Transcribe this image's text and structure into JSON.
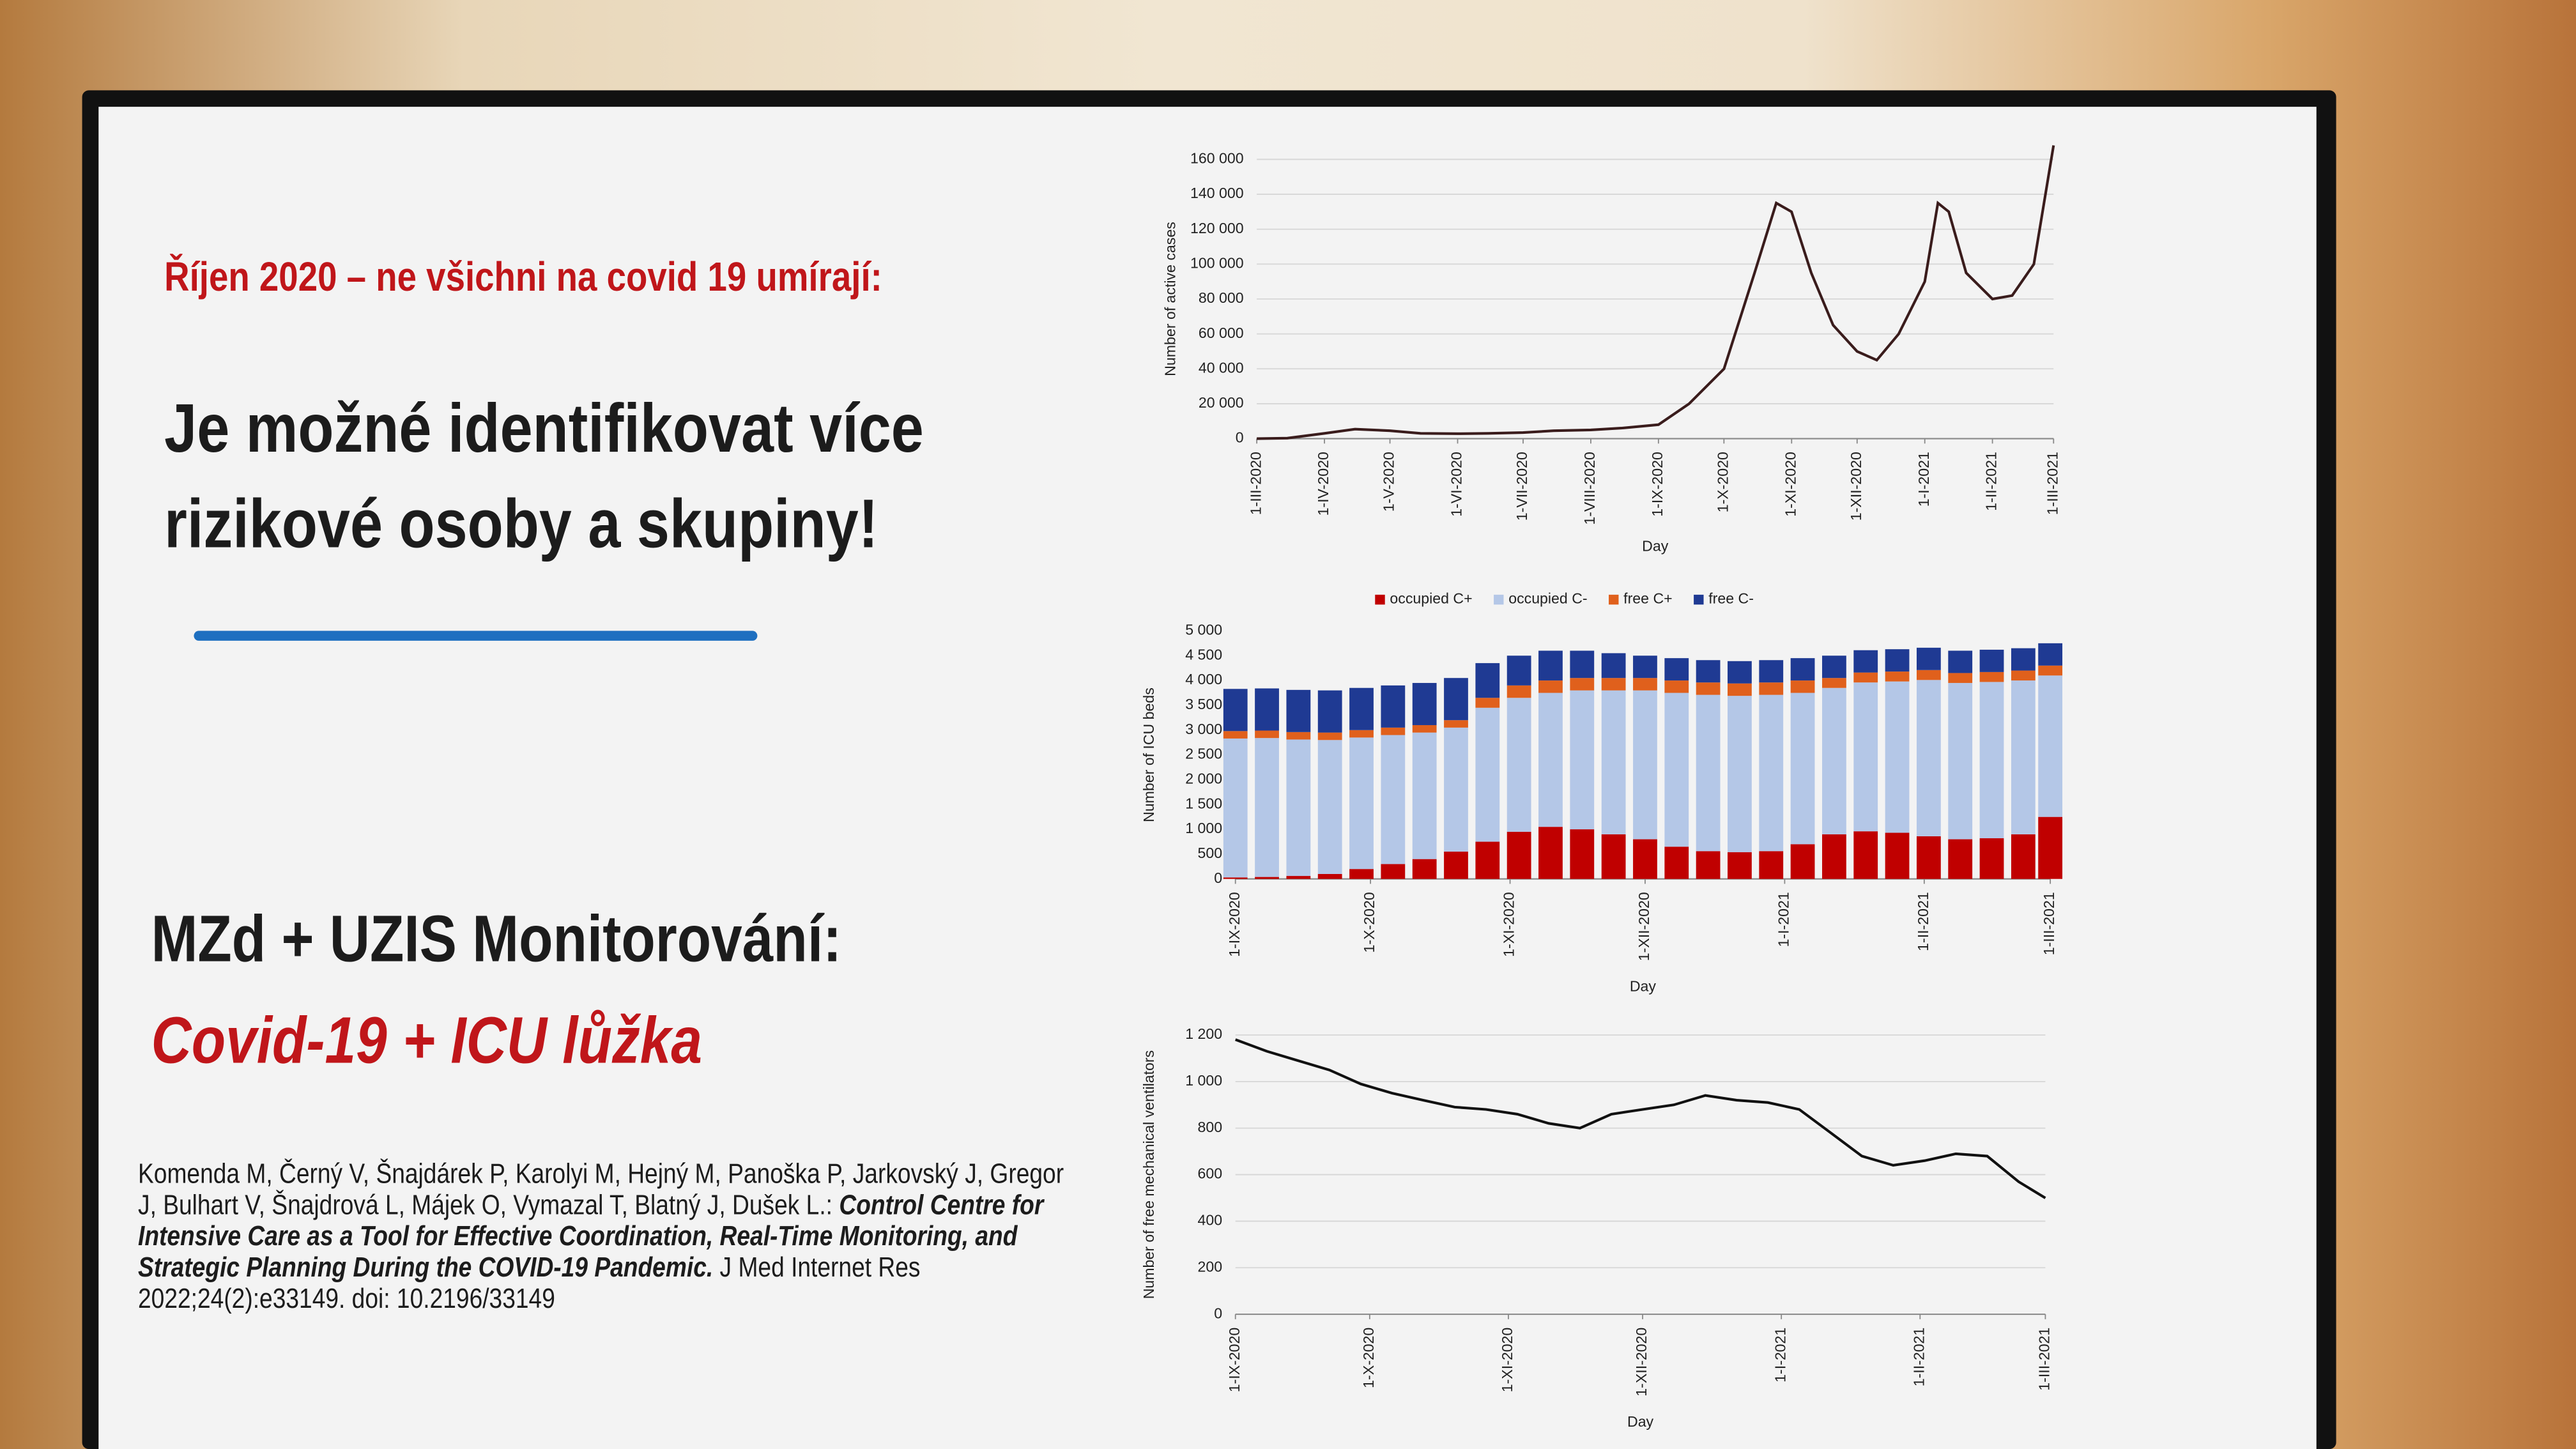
{
  "slide": {
    "heading": "Říjen 2020 – ne všichni na covid 19 umírají:",
    "message": "Je možné identifikovat více rizikové osoby a skupiny!",
    "monitoring": "MZd + UZIS Monitorování:",
    "monitoring_sub": "Covid-19 + ICU lůžka",
    "citation": {
      "authors": "Komenda M, Černý V, Šnajdárek P, Karolyi M, Hejný M, Panoška P, Jarkovský J, Gregor J, Bulhart V, Šnajdrová L, Májek O, Vymazal T, Blatný J, Dušek L.:",
      "title": "Control Centre for Intensive Care as a Tool for Effective Coordination, Real-Time Monitoring, and Strategic Planning During the COVID-19 Pandemic.",
      "journal": "J Med Internet Res 2022;24(2):e33149. doi: 10.2196/33149"
    }
  },
  "chart_data": [
    {
      "type": "line",
      "y_label": "Number of active cases",
      "x_label": "Day",
      "color": "#3a1c1c",
      "grid": true,
      "xlim": [
        "2020-03-01",
        "2021-03-01"
      ],
      "xticks": [
        {
          "value": "2020-03-01",
          "label": "1-III-2020"
        },
        {
          "value": "2020-04-01",
          "label": "1-IV-2020"
        },
        {
          "value": "2020-05-01",
          "label": "1-V-2020"
        },
        {
          "value": "2020-06-01",
          "label": "1-VI-2020"
        },
        {
          "value": "2020-07-01",
          "label": "1-VII-2020"
        },
        {
          "value": "2020-08-01",
          "label": "1-VIII-2020"
        },
        {
          "value": "2020-09-01",
          "label": "1-IX-2020"
        },
        {
          "value": "2020-10-01",
          "label": "1-X-2020"
        },
        {
          "value": "2020-11-01",
          "label": "1-XI-2020"
        },
        {
          "value": "2020-12-01",
          "label": "1-XII-2020"
        },
        {
          "value": "2021-01-01",
          "label": "1-I-2021"
        },
        {
          "value": "2021-02-01",
          "label": "1-II-2021"
        },
        {
          "value": "2021-03-01",
          "label": "1-III-2021"
        }
      ],
      "ylim": [
        0,
        160000
      ],
      "yticks": [
        0,
        {
          "value": 20000,
          "label": "20 000"
        },
        {
          "value": 40000,
          "label": "40 000"
        },
        {
          "value": 60000,
          "label": "60 000"
        },
        {
          "value": 80000,
          "label": "80 000"
        },
        {
          "value": 100000,
          "label": "100 000"
        },
        {
          "value": 120000,
          "label": "120 000"
        },
        {
          "value": 140000,
          "label": "140 000"
        },
        {
          "value": 160000,
          "label": "160 000"
        }
      ],
      "x": [
        "2020-03-01",
        "2020-03-15",
        "2020-04-01",
        "2020-04-15",
        "2020-05-01",
        "2020-05-15",
        "2020-06-01",
        "2020-06-15",
        "2020-07-01",
        "2020-07-15",
        "2020-08-01",
        "2020-08-15",
        "2020-09-01",
        "2020-09-15",
        "2020-10-01",
        "2020-10-15",
        "2020-10-25",
        "2020-11-01",
        "2020-11-10",
        "2020-11-20",
        "2020-12-01",
        "2020-12-10",
        "2020-12-20",
        "2021-01-01",
        "2021-01-07",
        "2021-01-12",
        "2021-01-20",
        "2021-02-01",
        "2021-02-10",
        "2021-02-20",
        "2021-03-01"
      ],
      "values": [
        0,
        300,
        3000,
        5500,
        4500,
        3000,
        2800,
        3000,
        3500,
        4500,
        5000,
        6000,
        8000,
        20000,
        40000,
        95000,
        135000,
        130000,
        95000,
        65000,
        50000,
        45000,
        60000,
        90000,
        135000,
        130000,
        95000,
        80000,
        82000,
        100000,
        168000
      ]
    },
    {
      "type": "bar",
      "y_label": "Number of ICU beds",
      "x_label": "Day",
      "legend": "top",
      "xlim": [
        "2020-09-01",
        "2021-03-01"
      ],
      "xticks": [
        {
          "value": "2020-09-01",
          "label": "1-IX-2020"
        },
        {
          "value": "2020-10-01",
          "label": "1-X-2020"
        },
        {
          "value": "2020-11-01",
          "label": "1-XI-2020"
        },
        {
          "value": "2020-12-01",
          "label": "1-XII-2020"
        },
        {
          "value": "2021-01-01",
          "label": "1-I-2021"
        },
        {
          "value": "2021-02-01",
          "label": "1-II-2021"
        },
        {
          "value": "2021-03-01",
          "label": "1-III-2021"
        }
      ],
      "ylim": [
        0,
        5000
      ],
      "yticks": [
        0,
        500,
        {
          "value": 1000,
          "label": "1 000"
        },
        {
          "value": 1500,
          "label": "1 500"
        },
        {
          "value": 2000,
          "label": "2 000"
        },
        {
          "value": 2500,
          "label": "2 500"
        },
        {
          "value": 3000,
          "label": "3 000"
        },
        {
          "value": 3500,
          "label": "3 500"
        },
        {
          "value": 4000,
          "label": "4 000"
        },
        {
          "value": 4500,
          "label": "4 500"
        },
        {
          "value": 5000,
          "label": "5 000"
        }
      ],
      "x": [
        "2020-09-01",
        "2020-09-08",
        "2020-09-15",
        "2020-09-22",
        "2020-09-29",
        "2020-10-06",
        "2020-10-13",
        "2020-10-20",
        "2020-10-27",
        "2020-11-03",
        "2020-11-10",
        "2020-11-17",
        "2020-11-24",
        "2020-12-01",
        "2020-12-08",
        "2020-12-15",
        "2020-12-22",
        "2020-12-29",
        "2021-01-05",
        "2021-01-12",
        "2021-01-19",
        "2021-01-26",
        "2021-02-02",
        "2021-02-09",
        "2021-02-16",
        "2021-02-23",
        "2021-03-01"
      ],
      "series": [
        {
          "name": "occupied C+",
          "color": "#c00000",
          "values": [
            30,
            40,
            60,
            100,
            200,
            300,
            400,
            550,
            750,
            950,
            1050,
            1000,
            900,
            800,
            650,
            560,
            540,
            560,
            700,
            900,
            960,
            930,
            860,
            800,
            820,
            900,
            1250
          ]
        },
        {
          "name": "occupied C-",
          "color": "#b4c7e7",
          "values": [
            2800,
            2800,
            2750,
            2700,
            2650,
            2600,
            2550,
            2500,
            2700,
            2700,
            2700,
            2800,
            2900,
            3000,
            3100,
            3150,
            3150,
            3150,
            3050,
            2950,
            3000,
            3050,
            3150,
            3150,
            3150,
            3100,
            2850
          ]
        },
        {
          "name": "free C+",
          "color": "#e0601c",
          "values": [
            150,
            150,
            150,
            150,
            150,
            150,
            150,
            150,
            200,
            250,
            250,
            250,
            250,
            250,
            250,
            250,
            250,
            250,
            250,
            200,
            200,
            200,
            200,
            200,
            200,
            200,
            200
          ]
        },
        {
          "name": "free C-",
          "color": "#1f3a93",
          "values": [
            850,
            850,
            850,
            850,
            850,
            850,
            850,
            850,
            700,
            600,
            600,
            550,
            500,
            450,
            450,
            450,
            450,
            450,
            450,
            450,
            450,
            450,
            450,
            450,
            450,
            450,
            450
          ]
        }
      ]
    },
    {
      "type": "line",
      "y_label": "Number of free mechanical ventilators",
      "x_label": "Day",
      "color": "#111111",
      "grid": true,
      "xlim": [
        "2020-09-01",
        "2021-03-01"
      ],
      "xticks": [
        {
          "value": "2020-09-01",
          "label": "1-IX-2020"
        },
        {
          "value": "2020-10-01",
          "label": "1-X-2020"
        },
        {
          "value": "2020-11-01",
          "label": "1-XI-2020"
        },
        {
          "value": "2020-12-01",
          "label": "1-XII-2020"
        },
        {
          "value": "2021-01-01",
          "label": "1-I-2021"
        },
        {
          "value": "2021-02-01",
          "label": "1-II-2021"
        },
        {
          "value": "2021-03-01",
          "label": "1-III-2021"
        }
      ],
      "ylim": [
        0,
        1200
      ],
      "yticks": [
        0,
        200,
        400,
        600,
        800,
        {
          "value": 1000,
          "label": "1 000"
        },
        {
          "value": 1200,
          "label": "1 200"
        }
      ],
      "x": [
        "2020-09-01",
        "2020-09-08",
        "2020-09-15",
        "2020-09-22",
        "2020-09-29",
        "2020-10-06",
        "2020-10-13",
        "2020-10-20",
        "2020-10-27",
        "2020-11-03",
        "2020-11-10",
        "2020-11-17",
        "2020-11-24",
        "2020-12-01",
        "2020-12-08",
        "2020-12-15",
        "2020-12-22",
        "2020-12-29",
        "2021-01-05",
        "2021-01-12",
        "2021-01-19",
        "2021-01-26",
        "2021-02-02",
        "2021-02-09",
        "2021-02-16",
        "2021-02-23",
        "2021-03-01"
      ],
      "values": [
        1180,
        1130,
        1090,
        1050,
        990,
        950,
        920,
        890,
        880,
        860,
        820,
        800,
        860,
        880,
        900,
        940,
        920,
        910,
        880,
        780,
        680,
        640,
        660,
        690,
        680,
        570,
        500
      ]
    }
  ]
}
